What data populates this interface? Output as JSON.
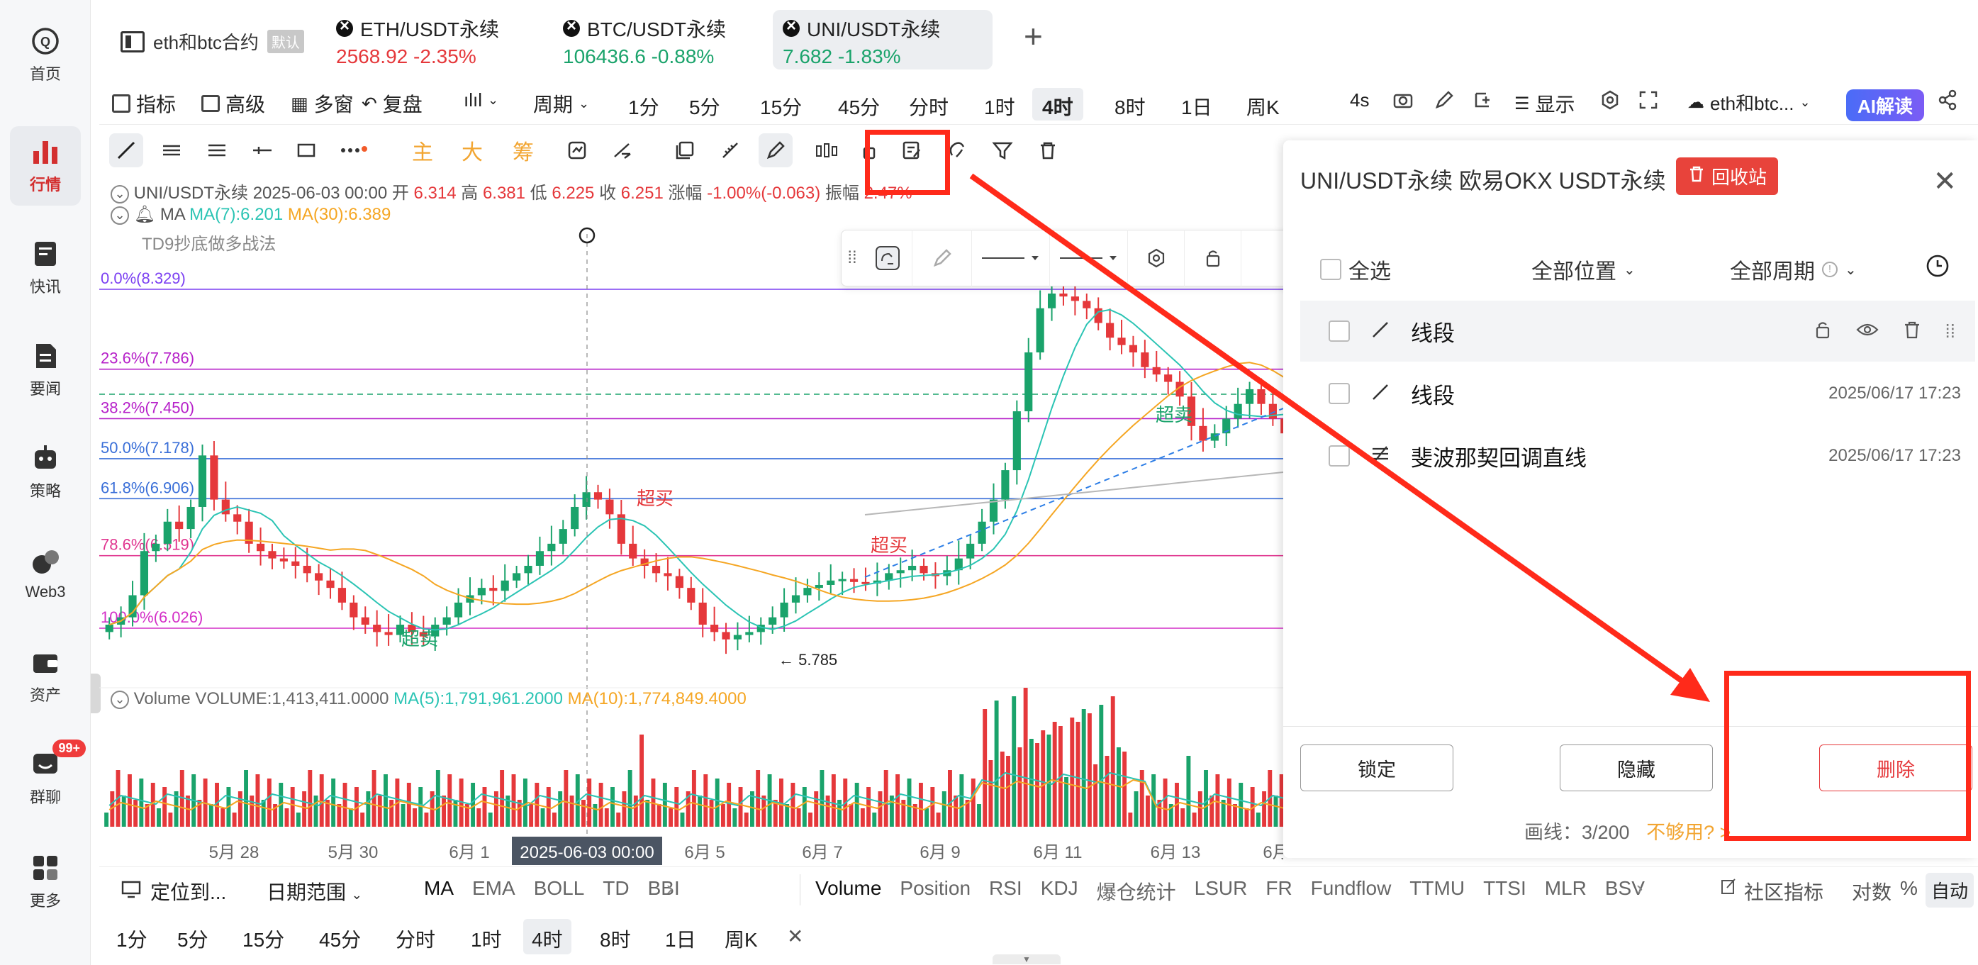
{
  "nav": {
    "items": [
      {
        "label": "首页",
        "icon": "home-icon"
      },
      {
        "label": "行情",
        "icon": "market-chart-icon",
        "active": true
      },
      {
        "label": "快讯",
        "icon": "flash-news-icon"
      },
      {
        "label": "要闻",
        "icon": "news-doc-icon"
      },
      {
        "label": "策略",
        "icon": "robot-icon"
      },
      {
        "label": "Web3",
        "icon": "web3-icon"
      },
      {
        "label": "资产",
        "icon": "wallet-icon"
      },
      {
        "label": "群聊",
        "icon": "chat-icon",
        "badge": "99+"
      },
      {
        "label": "更多",
        "icon": "grid-more-icon"
      }
    ]
  },
  "tabs": {
    "group": {
      "name": "eth和btc合约",
      "tag": "默认"
    },
    "items": [
      {
        "title": "ETH/USDT永续",
        "price": "2568.92",
        "change": "-2.35%",
        "color": "red"
      },
      {
        "title": "BTC/USDT永续",
        "price": "106436.6",
        "change": "-0.88%",
        "color": "green"
      },
      {
        "title": "UNI/USDT永续",
        "price": "7.682",
        "change": "-1.83%",
        "color": "green",
        "active": true
      }
    ],
    "add": "+"
  },
  "toolbar1": {
    "indicator": "指标",
    "advanced": "高级",
    "multi_window": "多窗",
    "replay": "复盘",
    "period_label": "周期",
    "periods": [
      "1分",
      "5分",
      "15分",
      "45分",
      "分时",
      "1时",
      "4时",
      "8时",
      "1日",
      "周K"
    ],
    "active_period": "4时",
    "refresh": "4s",
    "display": "显示",
    "watchlist": "eth和btc...",
    "ai": "AI解读"
  },
  "toolbar2": {
    "main_label": "主",
    "big_label": "大",
    "chip_label": "筹"
  },
  "chart": {
    "ohlc": {
      "symbol": "UNI/USDT永续",
      "time": "2025-06-03 00:00",
      "open_label": "开",
      "open": "6.314",
      "high_label": "高",
      "high": "6.381",
      "low_label": "低",
      "low": "6.225",
      "close_label": "收",
      "close": "6.251",
      "change_label": "涨幅",
      "change": "-1.00%(-0.063)",
      "amp_label": "振幅",
      "amp": "2.47%"
    },
    "ma": {
      "label": "MA",
      "ma7": "MA(7):6.201",
      "ma30": "MA(30):6.389"
    },
    "td9": "TD9抄底做多战法",
    "volume": {
      "label": "Volume",
      "vol": "VOLUME:1,413,411.0000",
      "ma5": "MA(5):1,791,961.2000",
      "ma10": "MA(10):1,774,849.4000"
    },
    "fib_levels": [
      {
        "label": "0.0%(8.329)",
        "color": "#7b3ff2"
      },
      {
        "label": "23.6%(7.786)",
        "color": "#b620c9"
      },
      {
        "label": "38.2%(7.450)",
        "color": "#b620c9"
      },
      {
        "label": "50.0%(7.178)",
        "color": "#3a6fd8"
      },
      {
        "label": "61.8%(6.906)",
        "color": "#3a6fd8"
      },
      {
        "label": "78.6%(6.519)",
        "color": "#e0358f"
      },
      {
        "label": "100.0%(6.026)",
        "color": "#d42fc7"
      }
    ],
    "annotations": {
      "overbought": "超买",
      "oversold": "超卖",
      "low_marker": "← 5.785"
    },
    "x_labels": [
      "5月 28",
      "5月 30",
      "6月 1",
      "6月 5",
      "6月 7",
      "6月 9",
      "6月 11",
      "6月 13",
      "6月"
    ],
    "crosshair_time": "2025-06-03 00:00"
  },
  "panel": {
    "title": "UNI/USDT永续 欧易OKX USDT永续",
    "recycle": "回收站",
    "select_all": "全选",
    "all_positions": "全部位置",
    "all_periods": "全部周期",
    "rows": [
      {
        "label": "线段",
        "date": "",
        "icon": "segment-icon"
      },
      {
        "label": "线段",
        "date": "2025/06/17 17:23",
        "icon": "segment-icon"
      },
      {
        "label": "斐波那契回调直线",
        "date": "2025/06/17 17:23",
        "icon": "fibonacci-icon"
      }
    ],
    "lock": "锁定",
    "hide": "隐藏",
    "delete": "删除",
    "quota_label": "画线：",
    "quota": "3/200",
    "not_enough": "不够用?",
    "not_enough_arrow": ">"
  },
  "bottom1": {
    "locate": "定位到...",
    "date_range": "日期范围",
    "indicators_main": [
      "MA",
      "EMA",
      "BOLL",
      "TD",
      "BBI"
    ],
    "indicators_sub": [
      "Volume",
      "Position",
      "RSI",
      "KDJ",
      "爆仓统计",
      "LSUR",
      "FR",
      "Fundflow",
      "TTMU",
      "TTSI",
      "MLR",
      "BSV"
    ],
    "community": "社区指标",
    "log": "对数",
    "percent": "%",
    "auto": "自动"
  },
  "bottom2": {
    "periods": [
      "1分",
      "5分",
      "15分",
      "45分",
      "分时",
      "1时",
      "4时",
      "8时",
      "1日",
      "周K"
    ],
    "active": "4时"
  },
  "colors": {
    "up": "#1aa36b",
    "down": "#e5383b",
    "ma7": "#2bc4b4",
    "ma30": "#f5a623",
    "annotation_red": "#ff2a1a"
  }
}
